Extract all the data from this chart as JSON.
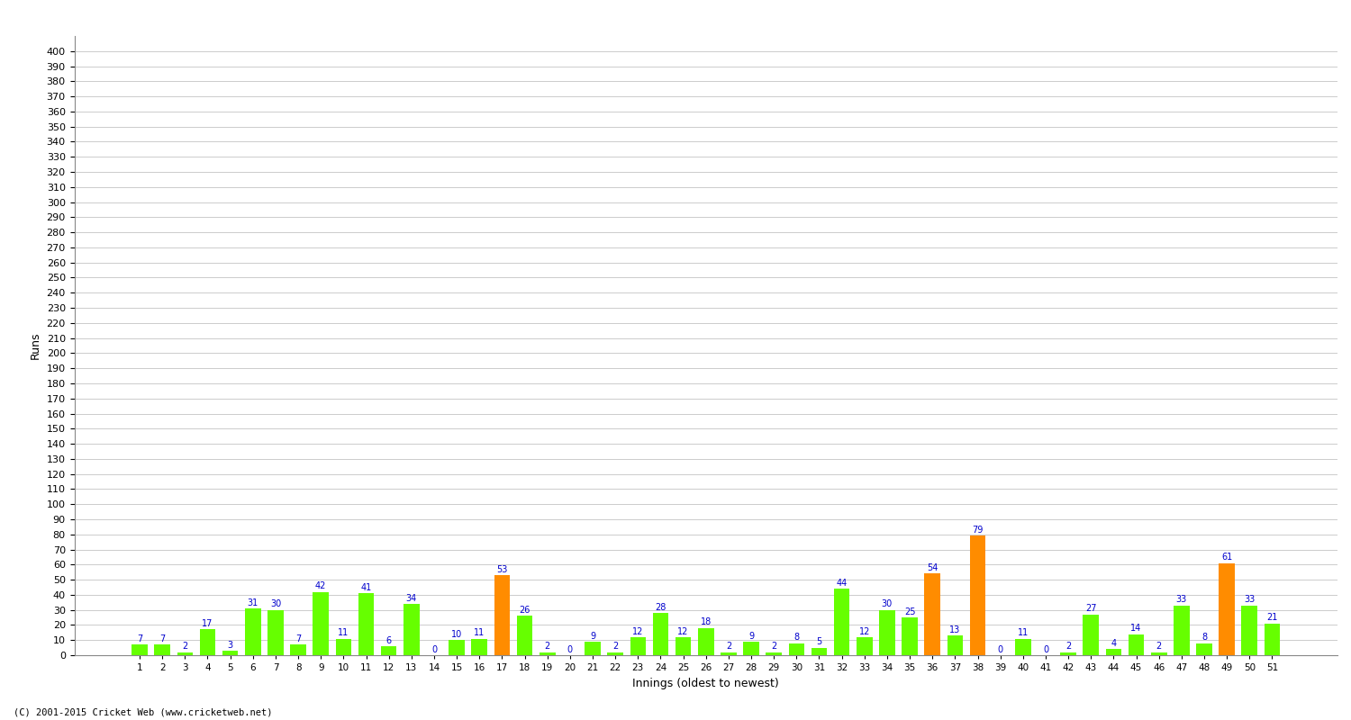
{
  "xlabel": "Innings (oldest to newest)",
  "ylabel": "Runs",
  "innings": [
    1,
    2,
    3,
    4,
    5,
    6,
    7,
    8,
    9,
    10,
    11,
    12,
    13,
    14,
    15,
    16,
    17,
    18,
    19,
    20,
    21,
    22,
    23,
    24,
    25,
    26,
    27,
    28,
    29,
    30,
    31,
    32,
    33,
    34,
    35,
    36,
    37,
    38,
    39,
    40,
    41,
    42,
    43,
    44,
    45,
    46,
    47,
    48,
    49,
    50,
    51
  ],
  "values": [
    7,
    7,
    2,
    17,
    3,
    31,
    30,
    7,
    42,
    11,
    41,
    6,
    34,
    0,
    10,
    11,
    53,
    26,
    2,
    0,
    9,
    2,
    12,
    28,
    12,
    18,
    2,
    9,
    2,
    8,
    5,
    44,
    12,
    30,
    25,
    54,
    13,
    79,
    0,
    11,
    0,
    2,
    27,
    4,
    14,
    2,
    33,
    8,
    61,
    33,
    21
  ],
  "orange_bars": [
    17,
    36,
    38,
    49
  ],
  "bar_color_green": "#66ff00",
  "bar_color_orange": "#ff8c00",
  "label_color": "#0000cc",
  "bg_color": "#ffffff",
  "grid_color": "#cccccc",
  "ylim": [
    0,
    410
  ],
  "yticks": [
    0,
    10,
    20,
    30,
    40,
    50,
    60,
    70,
    80,
    90,
    100,
    110,
    120,
    130,
    140,
    150,
    160,
    170,
    180,
    190,
    200,
    210,
    220,
    230,
    240,
    250,
    260,
    270,
    280,
    290,
    300,
    310,
    320,
    330,
    340,
    350,
    360,
    370,
    380,
    390,
    400
  ],
  "footnote": "(C) 2001-2015 Cricket Web (www.cricketweb.net)"
}
